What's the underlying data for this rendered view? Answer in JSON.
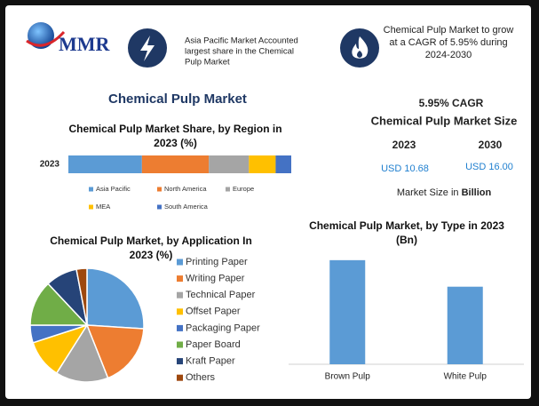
{
  "header": {
    "logo": "MMR",
    "left_text": [
      "Asia Pacific Market Accounted",
      "largest share in the Chemical",
      "Pulp Market"
    ],
    "right_text": [
      "Chemical Pulp Market to grow",
      "at a CAGR of 5.95% during",
      "2024-2030"
    ]
  },
  "title": "Chemical Pulp Market",
  "market_size": {
    "cagr": "5.95% CAGR",
    "heading": "Chemical Pulp Market Size",
    "years": [
      "2023",
      "2030"
    ],
    "values": [
      "USD 10.68",
      "USD 16.00"
    ],
    "label": "Market Size in",
    "unit": "Billion"
  },
  "chart_data": [
    {
      "type": "bar",
      "orientation": "horizontal",
      "stacked": true,
      "title": "Chemical Pulp Market Share, by Region in 2023 (%)",
      "categories": [
        "2023"
      ],
      "series": [
        {
          "name": "Asia Pacific",
          "color": "#5b9bd5",
          "values": [
            33
          ]
        },
        {
          "name": "North America",
          "color": "#ed7d31",
          "values": [
            30
          ]
        },
        {
          "name": "Europe",
          "color": "#a5a5a5",
          "values": [
            18
          ]
        },
        {
          "name": "MEA",
          "color": "#ffc000",
          "values": [
            12
          ]
        },
        {
          "name": "South America",
          "color": "#4472c4",
          "values": [
            7
          ]
        }
      ],
      "xlim": [
        0,
        100
      ]
    },
    {
      "type": "pie",
      "title": "Chemical Pulp Market, by Application In 2023 (%)",
      "categories": [
        "Printing Paper",
        "Writing Paper",
        "Technical Paper",
        "Offset Paper",
        "Packaging Paper",
        "Paper Board",
        "Kraft Paper",
        "Others"
      ],
      "values": [
        26,
        18,
        15,
        11,
        5,
        13,
        9,
        3
      ],
      "colors": [
        "#5b9bd5",
        "#ed7d31",
        "#a5a5a5",
        "#ffc000",
        "#4472c4",
        "#70ad47",
        "#264478",
        "#9e480e"
      ]
    },
    {
      "type": "bar",
      "title": "Chemical Pulp Market, by Type in 2023 (Bn)",
      "categories": [
        "Brown Pulp",
        "White Pulp"
      ],
      "values": [
        6.12,
        4.56
      ],
      "color": "#5b9bd5",
      "ylim": [
        0,
        7
      ]
    }
  ]
}
